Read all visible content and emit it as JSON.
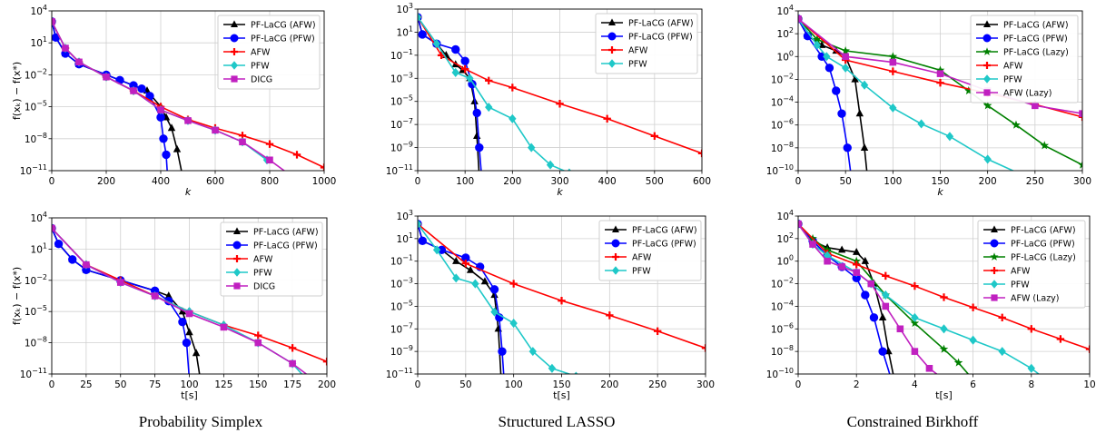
{
  "captions": [
    "Probability Simplex",
    "Structured LASSO",
    "Constrained Birkhoff"
  ],
  "styles": {
    "PF-LaCG (AFW)": {
      "color": "#000000",
      "marker": "triangle"
    },
    "PF-LaCG (PFW)": {
      "color": "#0000ff",
      "marker": "circle"
    },
    "PF-LaCG (Lazy)": {
      "color": "#008000",
      "marker": "star"
    },
    "AFW": {
      "color": "#ff0000",
      "marker": "plus"
    },
    "PFW": {
      "color": "#1fc8c8",
      "marker": "diamond"
    },
    "DICG": {
      "color": "#c020c0",
      "marker": "square"
    },
    "AFW (Lazy)": {
      "color": "#c020c0",
      "marker": "square"
    }
  },
  "chart_data": [
    {
      "type": "line",
      "panel": "simplex-iterations",
      "xlabel": "k",
      "ylabel": "f(x_k) − f(x*)",
      "yscale": "log",
      "xlim": [
        0,
        1000
      ],
      "xticks": [
        0,
        200,
        400,
        600,
        800,
        1000
      ],
      "yticks": [
        "10^4",
        "10^1",
        "10^-2",
        "10^-5",
        "10^-8",
        "10^-11"
      ],
      "ylim_exp": [
        -11,
        4
      ],
      "grid": true,
      "legend": "top-right",
      "series": [
        {
          "name": "PF-LaCG (AFW)",
          "x": [
            0,
            15,
            50,
            100,
            200,
            300,
            350,
            400,
            420,
            440,
            460,
            480
          ],
          "logy": [
            3,
            1.5,
            0,
            -1,
            -2,
            -3,
            -3.5,
            -5,
            -6,
            -7,
            -9,
            -11.5
          ]
        },
        {
          "name": "PF-LaCG (PFW)",
          "x": [
            0,
            15,
            50,
            100,
            200,
            250,
            300,
            330,
            360,
            400,
            410,
            420,
            425
          ],
          "logy": [
            3,
            1.5,
            0,
            -1,
            -2,
            -2.5,
            -3,
            -3.3,
            -4,
            -6,
            -8,
            -9.5,
            -11.5
          ]
        },
        {
          "name": "AFW",
          "x": [
            0,
            50,
            100,
            200,
            300,
            400,
            500,
            600,
            700,
            800,
            900,
            1000
          ],
          "logy": [
            3,
            0.5,
            -0.8,
            -2.2,
            -3.5,
            -5,
            -6.2,
            -7,
            -7.7,
            -8.5,
            -9.5,
            -10.7
          ]
        },
        {
          "name": "PFW",
          "x": [
            0,
            50,
            100,
            200,
            300,
            400,
            500,
            600,
            700,
            790
          ],
          "logy": [
            3,
            0.5,
            -0.8,
            -2.2,
            -3.5,
            -5.3,
            -6.3,
            -7.2,
            -8.3,
            -10
          ]
        },
        {
          "name": "DICG",
          "x": [
            0,
            50,
            100,
            200,
            300,
            400,
            500,
            600,
            700,
            800,
            880
          ],
          "logy": [
            3,
            0.5,
            -0.8,
            -2.2,
            -3.5,
            -5.3,
            -6.3,
            -7.2,
            -8.3,
            -10,
            -11.5
          ]
        }
      ]
    },
    {
      "type": "line",
      "panel": "lasso-iterations",
      "xlabel": "k",
      "ylabel": "",
      "yscale": "log",
      "xlim": [
        0,
        600
      ],
      "xticks": [
        0,
        100,
        200,
        300,
        400,
        500,
        600
      ],
      "yticks": [
        "10^3",
        "10^1",
        "10^-1",
        "10^-3",
        "10^-5",
        "10^-7",
        "10^-9",
        "10^-11"
      ],
      "ylim_exp": [
        -11,
        3
      ],
      "grid": true,
      "legend": "top-right",
      "series": [
        {
          "name": "PF-LaCG (AFW)",
          "x": [
            0,
            10,
            40,
            60,
            80,
            95,
            110,
            120,
            125,
            130
          ],
          "logy": [
            2.3,
            0.8,
            0,
            -1,
            -1.8,
            -2.3,
            -3,
            -5,
            -8,
            -11.5
          ]
        },
        {
          "name": "PF-LaCG (PFW)",
          "x": [
            0,
            10,
            40,
            80,
            100,
            115,
            125,
            130,
            135
          ],
          "logy": [
            2.3,
            0.8,
            0,
            -0.5,
            -1.5,
            -3.5,
            -6,
            -9,
            -11.5
          ]
        },
        {
          "name": "AFW",
          "x": [
            0,
            50,
            100,
            150,
            200,
            300,
            400,
            500,
            600
          ],
          "logy": [
            2.3,
            -1,
            -2.2,
            -3.2,
            -3.8,
            -5.2,
            -6.5,
            -8,
            -9.5
          ]
        },
        {
          "name": "PFW",
          "x": [
            0,
            40,
            80,
            110,
            150,
            200,
            240,
            280,
            320
          ],
          "logy": [
            2.3,
            0,
            -2.5,
            -3,
            -5.5,
            -6.5,
            -9,
            -10.5,
            -11.2
          ]
        }
      ]
    },
    {
      "type": "line",
      "panel": "birkhoff-iterations",
      "xlabel": "k",
      "ylabel": "",
      "yscale": "log",
      "xlim": [
        0,
        300
      ],
      "xticks": [
        0,
        50,
        100,
        150,
        200,
        250,
        300
      ],
      "yticks": [
        "10^4",
        "10^2",
        "10^0",
        "10^-2",
        "10^-4",
        "10^-6",
        "10^-8",
        "10^-10"
      ],
      "ylim_exp": [
        -10,
        4
      ],
      "grid": true,
      "legend": "top-right",
      "series": [
        {
          "name": "PF-LaCG (AFW)",
          "x": [
            0,
            10,
            25,
            40,
            50,
            60,
            65,
            70,
            73
          ],
          "logy": [
            3.3,
            1.8,
            1,
            0.5,
            0,
            -2,
            -5,
            -8,
            -10.5
          ]
        },
        {
          "name": "PF-LaCG (PFW)",
          "x": [
            0,
            10,
            25,
            33,
            40,
            46,
            52,
            56
          ],
          "logy": [
            3.3,
            1.8,
            0,
            -1,
            -3,
            -5,
            -8,
            -10.5
          ]
        },
        {
          "name": "PF-LaCG (Lazy)",
          "x": [
            0,
            20,
            50,
            100,
            150,
            180,
            200,
            230,
            260,
            300
          ],
          "logy": [
            3.3,
            1.5,
            0.5,
            0,
            -1.2,
            -3,
            -4.3,
            -6,
            -7.8,
            -9.5
          ]
        },
        {
          "name": "AFW",
          "x": [
            0,
            50,
            100,
            150,
            200,
            250,
            300
          ],
          "logy": [
            3.3,
            -0.3,
            -1.3,
            -2.3,
            -3.2,
            -4.2,
            -5.3
          ]
        },
        {
          "name": "PFW",
          "x": [
            0,
            20,
            30,
            50,
            70,
            100,
            130,
            160,
            200,
            240
          ],
          "logy": [
            3.3,
            1,
            0,
            -1,
            -2.5,
            -4.5,
            -5.9,
            -7,
            -9,
            -10.5
          ]
        },
        {
          "name": "AFW (Lazy)",
          "x": [
            0,
            50,
            100,
            150,
            200,
            250,
            300
          ],
          "logy": [
            3.3,
            0,
            -0.5,
            -1.5,
            -3,
            -4.3,
            -5
          ]
        }
      ]
    },
    {
      "type": "line",
      "panel": "simplex-time",
      "xlabel": "t[s]",
      "ylabel": "f(x_k) − f(x*)",
      "yscale": "log",
      "xlim": [
        0,
        200
      ],
      "xticks": [
        0,
        25,
        50,
        75,
        100,
        125,
        150,
        175,
        200
      ],
      "yticks": [
        "10^4",
        "10^1",
        "10^-2",
        "10^-5",
        "10^-8",
        "10^-11"
      ],
      "ylim_exp": [
        -11,
        4
      ],
      "grid": true,
      "legend": "top-right",
      "series": [
        {
          "name": "PF-LaCG (AFW)",
          "x": [
            0,
            5,
            15,
            25,
            50,
            75,
            85,
            95,
            100,
            105,
            108
          ],
          "logy": [
            3,
            1.5,
            0,
            -1,
            -2,
            -3,
            -3.5,
            -5,
            -7,
            -9,
            -11.5
          ]
        },
        {
          "name": "PF-LaCG (PFW)",
          "x": [
            0,
            5,
            15,
            25,
            50,
            75,
            85,
            95,
            98,
            100
          ],
          "logy": [
            3,
            1.5,
            0,
            -1,
            -2,
            -3,
            -4,
            -6,
            -8,
            -11.5
          ]
        },
        {
          "name": "AFW",
          "x": [
            0,
            25,
            50,
            75,
            100,
            125,
            150,
            175,
            200
          ],
          "logy": [
            3,
            -0.5,
            -2,
            -3.5,
            -5,
            -6.3,
            -7.3,
            -8.5,
            -9.8
          ]
        },
        {
          "name": "PFW",
          "x": [
            0,
            25,
            50,
            75,
            100,
            125,
            150,
            175,
            185
          ],
          "logy": [
            3,
            -0.5,
            -2.2,
            -3.5,
            -5,
            -6.3,
            -8,
            -10,
            -11.5
          ]
        },
        {
          "name": "DICG",
          "x": [
            0,
            25,
            50,
            75,
            100,
            125,
            150,
            175,
            190
          ],
          "logy": [
            3,
            -0.5,
            -2.2,
            -3.5,
            -5.2,
            -6.5,
            -8,
            -10,
            -11.5
          ]
        }
      ]
    },
    {
      "type": "line",
      "panel": "lasso-time",
      "xlabel": "t[s]",
      "ylabel": "",
      "yscale": "log",
      "xlim": [
        0,
        300
      ],
      "xticks": [
        0,
        50,
        100,
        150,
        200,
        250,
        300
      ],
      "yticks": [
        "10^3",
        "10^1",
        "10^-1",
        "10^-3",
        "10^-5",
        "10^-7",
        "10^-9",
        "10^-11"
      ],
      "ylim_exp": [
        -11,
        3
      ],
      "grid": true,
      "legend": "top-right",
      "series": [
        {
          "name": "PF-LaCG (AFW)",
          "x": [
            0,
            5,
            25,
            40,
            55,
            70,
            80,
            84,
            87
          ],
          "logy": [
            2.3,
            0.8,
            0,
            -1,
            -1.8,
            -2.8,
            -4,
            -7,
            -11.5
          ]
        },
        {
          "name": "PF-LaCG (PFW)",
          "x": [
            0,
            5,
            25,
            50,
            65,
            80,
            85,
            88,
            90
          ],
          "logy": [
            2.3,
            0.8,
            0,
            -0.7,
            -1.5,
            -3.5,
            -6,
            -9,
            -11.5
          ]
        },
        {
          "name": "AFW",
          "x": [
            0,
            50,
            100,
            150,
            200,
            250,
            300
          ],
          "logy": [
            2.3,
            -1.2,
            -3,
            -4.5,
            -5.8,
            -7.2,
            -8.7
          ]
        },
        {
          "name": "PFW",
          "x": [
            0,
            20,
            40,
            60,
            80,
            100,
            120,
            140,
            165
          ],
          "logy": [
            2.3,
            0,
            -2.5,
            -3,
            -5.5,
            -6.5,
            -9,
            -10.5,
            -11.2
          ]
        }
      ]
    },
    {
      "type": "line",
      "panel": "birkhoff-time",
      "xlabel": "t[s]",
      "ylabel": "",
      "yscale": "log",
      "xlim": [
        0,
        10
      ],
      "xticks": [
        0,
        2,
        4,
        6,
        8,
        10
      ],
      "yticks": [
        "10^4",
        "10^2",
        "10^0",
        "10^-2",
        "10^-4",
        "10^-6",
        "10^-8",
        "10^-10"
      ],
      "ylim_exp": [
        -10,
        4
      ],
      "grid": true,
      "legend": "top-right",
      "series": [
        {
          "name": "PF-LaCG (AFW)",
          "x": [
            0,
            0.5,
            1,
            1.5,
            2,
            2.3,
            2.6,
            2.9,
            3.1,
            3.3
          ],
          "logy": [
            3.3,
            1.8,
            1.2,
            1,
            0.8,
            0,
            -2,
            -5,
            -8,
            -10.5
          ]
        },
        {
          "name": "PF-LaCG (PFW)",
          "x": [
            0,
            0.5,
            1,
            1.5,
            2,
            2.3,
            2.6,
            2.9,
            3.2
          ],
          "logy": [
            3.3,
            1.8,
            0.5,
            -0.5,
            -1.5,
            -3,
            -5,
            -8,
            -10.5
          ]
        },
        {
          "name": "PF-LaCG (Lazy)",
          "x": [
            0,
            0.5,
            1,
            2,
            3,
            4,
            5,
            5.5,
            6
          ],
          "logy": [
            3.3,
            2,
            1,
            0,
            -3,
            -5.5,
            -7.8,
            -9,
            -10.5
          ]
        },
        {
          "name": "AFW",
          "x": [
            0,
            1,
            2,
            3,
            4,
            5,
            6,
            7,
            8,
            9,
            10
          ],
          "logy": [
            3.3,
            0.7,
            -0.3,
            -1.3,
            -2.2,
            -3.2,
            -4.1,
            -5,
            -6,
            -6.9,
            -7.8
          ]
        },
        {
          "name": "PFW",
          "x": [
            0,
            0.5,
            1,
            2,
            2.5,
            3,
            4,
            5,
            6,
            7,
            8,
            8.5
          ],
          "logy": [
            3.3,
            1.5,
            0.5,
            -1,
            -2,
            -3,
            -5,
            -6,
            -7,
            -8,
            -9.5,
            -10.5
          ]
        },
        {
          "name": "AFW (Lazy)",
          "x": [
            0,
            0.5,
            1,
            1.5,
            2,
            2.5,
            3,
            3.5,
            4,
            4.5,
            5
          ],
          "logy": [
            3.3,
            1.5,
            0,
            -0.5,
            -1,
            -2,
            -4,
            -6,
            -8,
            -9.5,
            -10.5
          ]
        }
      ]
    }
  ]
}
